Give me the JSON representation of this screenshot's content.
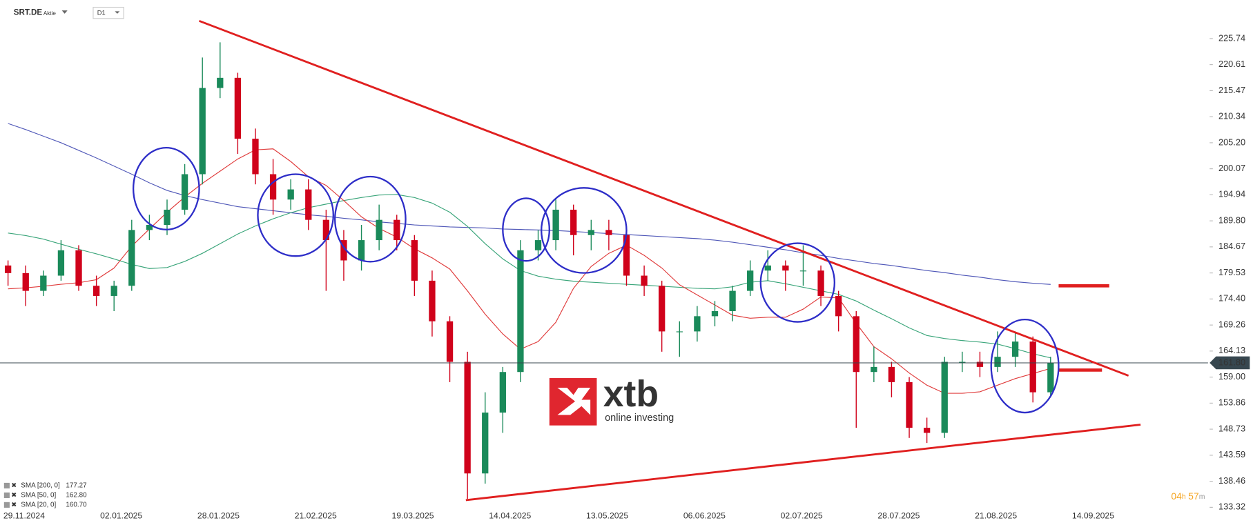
{
  "header": {
    "symbol": "SRT.DE",
    "kind": "Aktie",
    "interval": "D1"
  },
  "logo": {
    "brand": "xtb",
    "tagline": "online investing"
  },
  "timer": {
    "hours": "04",
    "h": "h",
    "minutes": "57",
    "m": "m"
  },
  "chart_data": {
    "type": "candlestick",
    "grid": false,
    "up_color": "#1a8a5a",
    "down_color": "#d0021b",
    "ylim": [
      132.53,
      233.34
    ],
    "yticks": [
      225.74,
      220.61,
      215.47,
      210.34,
      {
        "value": 205.2,
        "label": "205.20"
      },
      200.07,
      194.94,
      {
        "value": 189.8,
        "label": "189.80"
      },
      184.67,
      179.53,
      {
        "value": 174.4,
        "label": "174.40"
      },
      169.26,
      164.13,
      {
        "value": 159.0,
        "label": "159.00"
      },
      153.86,
      148.73,
      143.59,
      138.46,
      133.32
    ],
    "date_labels": [
      "29.11.2024",
      "02.01.2025",
      "28.01.2025",
      "21.02.2025",
      "19.03.2025",
      "14.04.2025",
      "13.05.2025",
      "06.06.2025",
      "02.07.2025",
      "28.07.2025",
      "21.08.2025",
      "14.09.2025"
    ],
    "last_price_label": "161.80",
    "ohlc": [
      [
        181,
        182,
        177,
        179.5
      ],
      [
        179.5,
        181,
        173,
        176
      ],
      [
        176,
        180,
        175,
        179
      ],
      [
        179,
        186,
        178,
        184
      ],
      [
        184,
        185,
        176,
        177
      ],
      [
        177,
        179,
        173,
        175
      ],
      [
        175,
        178,
        172,
        177
      ],
      [
        177,
        190,
        176,
        188
      ],
      [
        188,
        191,
        186,
        189
      ],
      [
        189,
        194,
        187,
        192
      ],
      [
        192,
        201,
        191,
        199
      ],
      [
        199,
        222,
        197,
        216
      ],
      [
        216,
        225,
        214,
        218
      ],
      [
        218,
        219,
        203,
        206
      ],
      [
        206,
        208,
        197,
        199
      ],
      [
        199,
        202,
        191,
        194
      ],
      [
        194,
        198,
        192,
        196
      ],
      [
        196,
        198,
        188,
        190
      ],
      [
        190,
        192,
        176,
        186
      ],
      [
        186,
        188,
        178,
        182
      ],
      [
        182,
        189,
        180,
        186
      ],
      [
        186,
        193,
        184,
        190
      ],
      [
        190,
        191,
        184,
        186
      ],
      [
        186,
        187,
        175,
        178
      ],
      [
        178,
        180,
        167,
        170
      ],
      [
        170,
        171,
        158,
        162
      ],
      [
        162,
        164,
        135,
        140
      ],
      [
        140,
        156,
        138,
        152
      ],
      [
        152,
        161,
        148,
        160
      ],
      [
        160,
        186,
        158,
        184
      ],
      [
        184,
        188,
        182,
        186
      ],
      [
        186,
        194,
        184,
        192
      ],
      [
        192,
        193,
        183,
        187
      ],
      [
        187,
        190,
        184,
        188
      ],
      [
        188,
        190,
        184,
        187
      ],
      [
        187,
        188,
        177,
        179
      ],
      [
        179,
        181,
        175,
        177
      ],
      [
        177,
        178,
        164,
        168
      ],
      [
        168,
        170,
        163,
        168
      ],
      [
        168,
        173,
        166,
        171
      ],
      [
        171,
        174,
        169,
        172
      ],
      [
        172,
        177,
        170,
        176
      ],
      [
        176,
        182,
        175,
        180
      ],
      [
        180,
        184,
        178,
        181
      ],
      [
        181,
        182,
        176,
        180
      ],
      [
        180,
        185,
        177,
        180
      ],
      [
        180,
        181,
        173,
        175
      ],
      [
        175,
        176,
        168,
        171
      ],
      [
        171,
        172,
        149,
        160
      ],
      [
        160,
        165,
        158,
        161
      ],
      [
        161,
        162,
        155,
        158
      ],
      [
        158,
        159,
        147,
        149
      ],
      [
        149,
        151,
        146,
        148
      ],
      [
        148,
        163,
        147,
        162
      ],
      [
        162,
        164,
        160,
        162
      ],
      [
        162,
        164,
        159,
        161
      ],
      [
        161,
        168,
        160,
        163
      ],
      [
        163,
        168,
        161,
        166
      ],
      [
        166,
        167,
        154,
        156
      ],
      [
        156,
        163,
        155,
        161.8
      ]
    ],
    "series": [
      {
        "name": "SMA [200,  0]",
        "color": "#5058b8",
        "legend_value": "177.27",
        "values": [
          209,
          207.8,
          206.5,
          205.2,
          203.7,
          202.2,
          200.6,
          199,
          197.3,
          195.8,
          194.8,
          194,
          193.3,
          192.6,
          192.2,
          191.8,
          191.4,
          191,
          190.7,
          190.3,
          190,
          189.6,
          189.3,
          189,
          188.8,
          188.6,
          188.5,
          188.4,
          188.2,
          188.1,
          188,
          187.9,
          187.7,
          187.5,
          187.3,
          187.1,
          186.9,
          186.7,
          186.5,
          186.3,
          186,
          185.6,
          185.1,
          184.6,
          184.1,
          183.5,
          183,
          182.4,
          181.9,
          181.4,
          181,
          180.5,
          180,
          179.6,
          179.1,
          178.7,
          178.2,
          177.8,
          177.5,
          177.27
        ]
      },
      {
        "name": "SMA [50,  0]",
        "color": "#3aa57a",
        "legend_value": "162.80",
        "values": [
          187.4,
          186.9,
          186.2,
          185.2,
          184.2,
          183.3,
          182.3,
          181.2,
          180.4,
          180.6,
          181.8,
          183.4,
          185.3,
          187.2,
          188.8,
          190.2,
          191.4,
          192.4,
          193.1,
          193.8,
          194.4,
          194.9,
          195,
          194.4,
          193.3,
          191.5,
          188.7,
          185.3,
          182.3,
          180,
          178.9,
          178.3,
          177.9,
          177.7,
          177.5,
          177.3,
          177.1,
          176.9,
          176.7,
          176.5,
          176.4,
          176.8,
          177.7,
          178,
          177.4,
          176.7,
          176,
          175.3,
          174,
          172.2,
          170.5,
          168.7,
          167.2,
          166.6,
          166.2,
          165.9,
          165.5,
          164.6,
          163.6,
          162.8
        ]
      },
      {
        "name": "SMA [20,  0]",
        "color": "#e03c3c",
        "legend_value": "160.70",
        "values": [
          176.4,
          176.6,
          176.9,
          177.3,
          177.6,
          178.2,
          180.5,
          184.8,
          188.2,
          191.5,
          194.5,
          197.2,
          199.6,
          202,
          203.8,
          204,
          201.5,
          198.5,
          196.8,
          193.8,
          190.6,
          188.3,
          186.6,
          184.3,
          182.5,
          180.3,
          176,
          171.4,
          167.5,
          164.5,
          166,
          169.8,
          176.5,
          180.8,
          183.4,
          185,
          183,
          180.5,
          177.2,
          175.2,
          173.2,
          171.2,
          170.6,
          170.8,
          170.8,
          172.4,
          174.8,
          174.6,
          169.6,
          165,
          162.6,
          159.8,
          157.4,
          155.8,
          155.8,
          156.1,
          157.4,
          158.7,
          159.7,
          160.7
        ]
      }
    ]
  }
}
